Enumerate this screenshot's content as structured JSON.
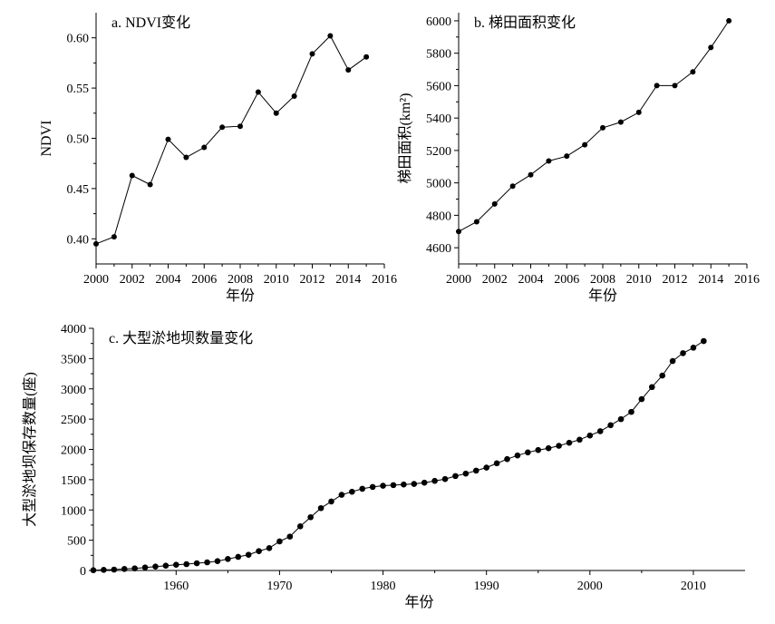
{
  "chart_data": [
    {
      "id": "a",
      "type": "line",
      "title": "a. NDVI变化",
      "xlabel": "年份",
      "ylabel": "NDVI",
      "xlim": [
        2000,
        2016
      ],
      "ylim": [
        0.375,
        0.625
      ],
      "xticks": [
        2000,
        2002,
        2004,
        2006,
        2008,
        2010,
        2012,
        2014,
        2016
      ],
      "yticks": [
        0.4,
        0.45,
        0.5,
        0.55,
        0.6
      ],
      "ytick_labels": [
        "0.40",
        "0.45",
        "0.50",
        "0.55",
        "0.60"
      ],
      "x": [
        2000,
        2001,
        2002,
        2003,
        2004,
        2005,
        2006,
        2007,
        2008,
        2009,
        2010,
        2011,
        2012,
        2013,
        2014,
        2015
      ],
      "values": [
        0.395,
        0.402,
        0.463,
        0.454,
        0.499,
        0.481,
        0.491,
        0.511,
        0.512,
        0.546,
        0.525,
        0.542,
        0.584,
        0.602,
        0.568,
        0.581
      ]
    },
    {
      "id": "b",
      "type": "line",
      "title": "b. 梯田面积变化",
      "xlabel": "年份",
      "ylabel": "梯田面积(km²)",
      "xlim": [
        2000,
        2016
      ],
      "ylim": [
        4500,
        6050
      ],
      "xticks": [
        2000,
        2002,
        2004,
        2006,
        2008,
        2010,
        2012,
        2014,
        2016
      ],
      "yticks": [
        4600,
        4800,
        5000,
        5200,
        5400,
        5600,
        5800,
        6000
      ],
      "ytick_labels": [
        "4600",
        "4800",
        "5000",
        "5200",
        "5400",
        "5600",
        "5800",
        "6000"
      ],
      "x": [
        2000,
        2001,
        2002,
        2003,
        2004,
        2005,
        2006,
        2007,
        2008,
        2009,
        2010,
        2011,
        2012,
        2013,
        2014,
        2015
      ],
      "values": [
        4700,
        4760,
        4870,
        4980,
        5050,
        5135,
        5165,
        5235,
        5340,
        5375,
        5435,
        5600,
        5600,
        5685,
        5835,
        6000
      ]
    },
    {
      "id": "c",
      "type": "line",
      "title": "c. 大型淤地坝数量变化",
      "xlabel": "年份",
      "ylabel": "大型淤地坝保存数量(座)",
      "xlim": [
        1952,
        2015
      ],
      "ylim": [
        0,
        4000
      ],
      "xticks": [
        1960,
        1970,
        1980,
        1990,
        2000,
        2010
      ],
      "yticks": [
        0,
        500,
        1000,
        1500,
        2000,
        2500,
        3000,
        3500,
        4000
      ],
      "ytick_labels": [
        "0",
        "500",
        "1000",
        "1500",
        "2000",
        "2500",
        "3000",
        "3500",
        "4000"
      ],
      "x": [
        1952,
        1953,
        1954,
        1955,
        1956,
        1957,
        1958,
        1959,
        1960,
        1961,
        1962,
        1963,
        1964,
        1965,
        1966,
        1967,
        1968,
        1969,
        1970,
        1971,
        1972,
        1973,
        1974,
        1975,
        1976,
        1977,
        1978,
        1979,
        1980,
        1981,
        1982,
        1983,
        1984,
        1985,
        1986,
        1987,
        1988,
        1989,
        1990,
        1991,
        1992,
        1993,
        1994,
        1995,
        1996,
        1997,
        1998,
        1999,
        2000,
        2001,
        2002,
        2003,
        2004,
        2005,
        2006,
        2007,
        2008,
        2009,
        2010,
        2011
      ],
      "values": [
        5,
        10,
        15,
        25,
        35,
        50,
        65,
        80,
        95,
        105,
        120,
        135,
        155,
        190,
        225,
        260,
        320,
        370,
        480,
        560,
        730,
        880,
        1030,
        1140,
        1250,
        1300,
        1350,
        1380,
        1400,
        1410,
        1420,
        1430,
        1450,
        1480,
        1510,
        1560,
        1600,
        1650,
        1700,
        1770,
        1840,
        1900,
        1950,
        1990,
        2020,
        2060,
        2110,
        2160,
        2230,
        2300,
        2400,
        2500,
        2620,
        2830,
        3030,
        3220,
        3460,
        3590,
        3680,
        3790
      ]
    }
  ]
}
